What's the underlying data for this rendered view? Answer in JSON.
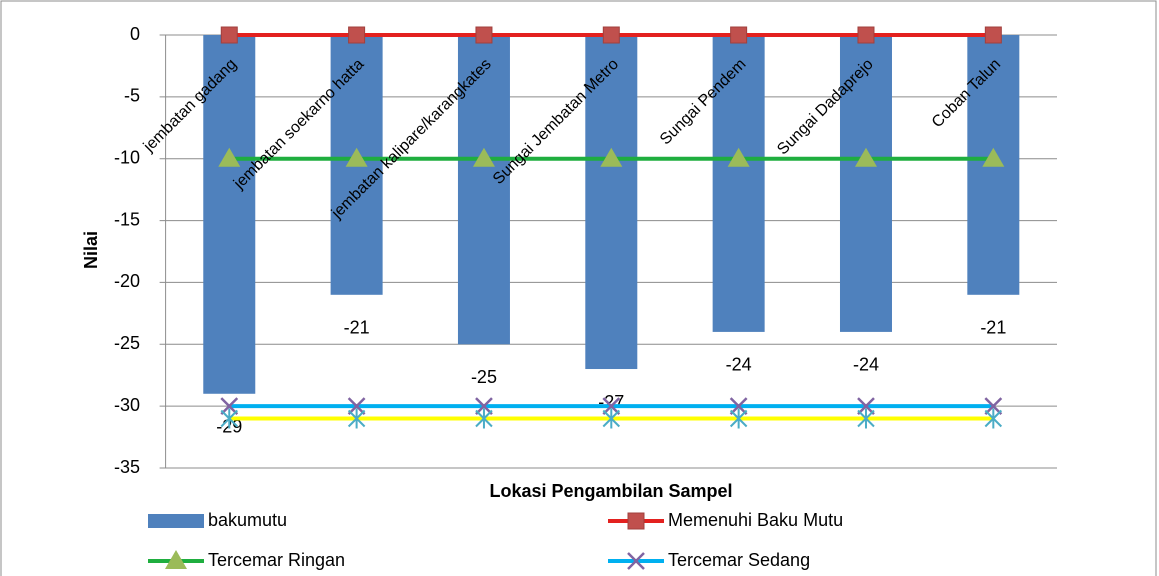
{
  "chart_data": {
    "type": "bar",
    "x_label": "Lokasi Pengambilan Sampel",
    "y_label": "Nilai",
    "categories": [
      "jembatan gadang",
      "jembatan soekarno hatta",
      "jembatan kalipare/karangkates",
      "Sungai Jembatan Metro",
      "Sungai Pendem",
      "Sungai Dadaprejo",
      "Coban Talun"
    ],
    "series": [
      {
        "name": "bakumutu",
        "type": "bar",
        "color": "#4f81bd",
        "values": [
          -29,
          -21,
          -25,
          -27,
          -24,
          -24,
          -21
        ]
      },
      {
        "name": "Memenuhi Baku Mutu",
        "type": "line",
        "color": "#e3211f",
        "marker": "square",
        "marker_color": "#c0504d",
        "values": [
          0,
          0,
          0,
          0,
          0,
          0,
          0
        ]
      },
      {
        "name": "Tercemar Ringan",
        "type": "line",
        "color": "#1fae3f",
        "marker": "triangle",
        "marker_color": "#9bbb59",
        "values": [
          -10,
          -10,
          -10,
          -10,
          -10,
          -10,
          -10
        ]
      },
      {
        "name": "Tercemar Sedang",
        "type": "line",
        "color": "#00b0f0",
        "marker": "x",
        "marker_color": "#8064a2",
        "values": [
          -30,
          -30,
          -30,
          -30,
          -30,
          -30,
          -30
        ]
      },
      {
        "type": "line",
        "color": "#ffff00",
        "marker": "star",
        "marker_color": "#4bacc6",
        "values": [
          -31,
          -31,
          -31,
          -31,
          -31,
          -31,
          -31
        ]
      }
    ],
    "ylim": [
      -35,
      0
    ],
    "yticks": [
      0,
      -5,
      -10,
      -15,
      -20,
      -25,
      -30,
      -35
    ],
    "grid": true
  }
}
